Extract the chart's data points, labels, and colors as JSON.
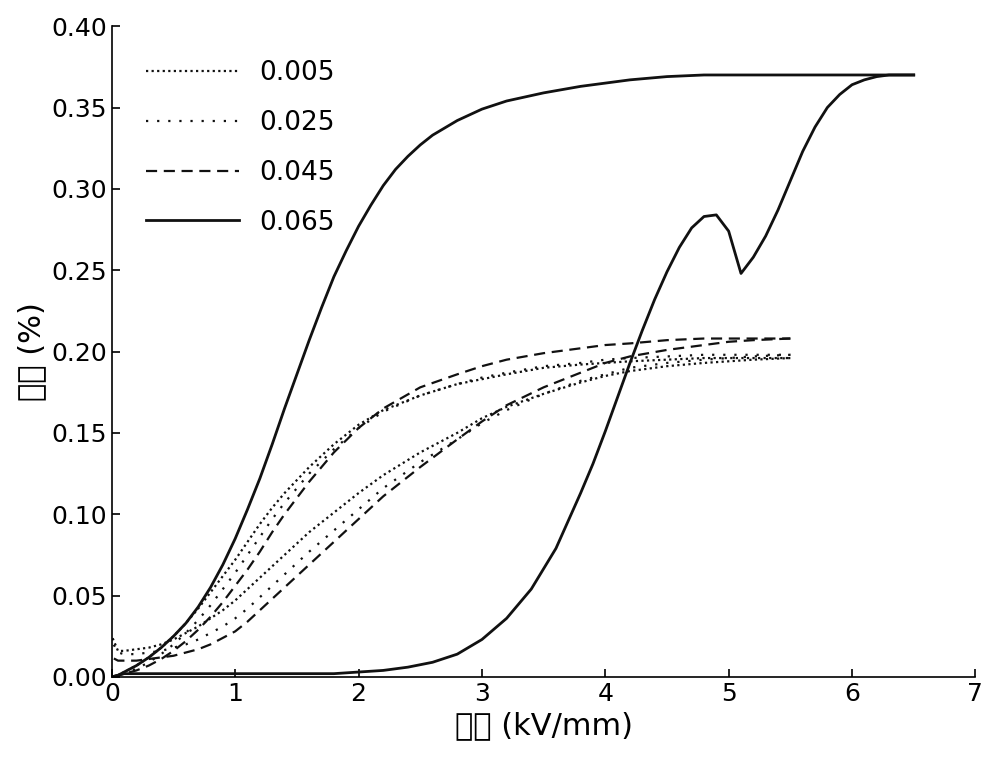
{
  "xlabel": "电场 (kV/mm)",
  "ylabel": "应变 (%)",
  "xlim": [
    0,
    7
  ],
  "ylim": [
    0,
    0.4
  ],
  "xticks": [
    0,
    1,
    2,
    3,
    4,
    5,
    6,
    7
  ],
  "yticks": [
    0.0,
    0.05,
    0.1,
    0.15,
    0.2,
    0.25,
    0.3,
    0.35,
    0.4
  ],
  "legend_labels": [
    "0.005",
    "0.025",
    "0.045",
    "0.065"
  ],
  "line_color": "#111111",
  "background_color": "#ffffff",
  "xlabel_fontsize": 22,
  "ylabel_fontsize": 22,
  "tick_fontsize": 18,
  "legend_fontsize": 19,
  "curves": {
    "s005_up_x": [
      0,
      0.05,
      0.1,
      0.2,
      0.3,
      0.4,
      0.5,
      0.6,
      0.7,
      0.8,
      0.9,
      1.0,
      1.1,
      1.2,
      1.3,
      1.4,
      1.5,
      1.6,
      1.8,
      2.0,
      2.2,
      2.5,
      2.8,
      3.0,
      3.2,
      3.5,
      3.8,
      4.0,
      4.2,
      4.5,
      4.8,
      5.0,
      5.2,
      5.5
    ],
    "s005_up_y": [
      0,
      0.001,
      0.003,
      0.007,
      0.012,
      0.018,
      0.025,
      0.033,
      0.042,
      0.052,
      0.062,
      0.072,
      0.083,
      0.094,
      0.104,
      0.113,
      0.121,
      0.129,
      0.143,
      0.155,
      0.164,
      0.173,
      0.18,
      0.183,
      0.186,
      0.19,
      0.192,
      0.193,
      0.194,
      0.195,
      0.196,
      0.196,
      0.196,
      0.196
    ],
    "s005_down_x": [
      5.5,
      5.2,
      5.0,
      4.8,
      4.5,
      4.2,
      4.0,
      3.8,
      3.5,
      3.2,
      3.0,
      2.8,
      2.5,
      2.2,
      2.0,
      1.8,
      1.6,
      1.5,
      1.4,
      1.3,
      1.2,
      1.1,
      1.0,
      0.9,
      0.8,
      0.7,
      0.6,
      0.5,
      0.4,
      0.3,
      0.2,
      0.1,
      0.05,
      0.0
    ],
    "s005_down_y": [
      0.196,
      0.195,
      0.194,
      0.193,
      0.191,
      0.188,
      0.185,
      0.181,
      0.174,
      0.166,
      0.159,
      0.15,
      0.138,
      0.124,
      0.113,
      0.101,
      0.089,
      0.082,
      0.075,
      0.068,
      0.061,
      0.054,
      0.047,
      0.041,
      0.036,
      0.031,
      0.027,
      0.023,
      0.02,
      0.018,
      0.017,
      0.016,
      0.016,
      0.025
    ],
    "s025_up_x": [
      0,
      0.05,
      0.1,
      0.2,
      0.3,
      0.4,
      0.5,
      0.6,
      0.7,
      0.8,
      0.9,
      1.0,
      1.1,
      1.2,
      1.3,
      1.4,
      1.5,
      1.6,
      1.8,
      2.0,
      2.2,
      2.5,
      2.8,
      3.0,
      3.2,
      3.5,
      3.8,
      4.0,
      4.2,
      4.5,
      4.8,
      5.0,
      5.2,
      5.5
    ],
    "s025_up_y": [
      0,
      0.001,
      0.002,
      0.005,
      0.009,
      0.014,
      0.02,
      0.027,
      0.035,
      0.044,
      0.054,
      0.064,
      0.075,
      0.086,
      0.097,
      0.107,
      0.116,
      0.125,
      0.14,
      0.153,
      0.163,
      0.173,
      0.18,
      0.184,
      0.187,
      0.191,
      0.193,
      0.195,
      0.196,
      0.197,
      0.198,
      0.198,
      0.198,
      0.198
    ],
    "s025_down_x": [
      5.5,
      5.2,
      5.0,
      4.8,
      4.5,
      4.2,
      4.0,
      3.8,
      3.5,
      3.2,
      3.0,
      2.8,
      2.5,
      2.2,
      2.0,
      1.8,
      1.6,
      1.5,
      1.4,
      1.3,
      1.2,
      1.1,
      1.0,
      0.9,
      0.8,
      0.7,
      0.6,
      0.5,
      0.4,
      0.3,
      0.2,
      0.1,
      0.05,
      0.0
    ],
    "s025_down_y": [
      0.198,
      0.197,
      0.196,
      0.195,
      0.193,
      0.19,
      0.186,
      0.182,
      0.174,
      0.164,
      0.156,
      0.146,
      0.132,
      0.116,
      0.103,
      0.09,
      0.077,
      0.07,
      0.063,
      0.056,
      0.049,
      0.042,
      0.036,
      0.031,
      0.027,
      0.023,
      0.02,
      0.018,
      0.016,
      0.015,
      0.014,
      0.014,
      0.015,
      0.022
    ],
    "s045_up_x": [
      0,
      0.05,
      0.1,
      0.2,
      0.3,
      0.4,
      0.5,
      0.6,
      0.7,
      0.8,
      0.9,
      1.0,
      1.1,
      1.2,
      1.3,
      1.4,
      1.5,
      1.6,
      1.8,
      2.0,
      2.2,
      2.5,
      2.8,
      3.0,
      3.2,
      3.5,
      3.8,
      4.0,
      4.2,
      4.5,
      4.8,
      5.0,
      5.2,
      5.5
    ],
    "s045_up_y": [
      0,
      0.001,
      0.002,
      0.004,
      0.007,
      0.011,
      0.016,
      0.022,
      0.029,
      0.037,
      0.046,
      0.056,
      0.066,
      0.077,
      0.089,
      0.1,
      0.11,
      0.12,
      0.138,
      0.153,
      0.165,
      0.178,
      0.186,
      0.191,
      0.195,
      0.199,
      0.202,
      0.204,
      0.205,
      0.207,
      0.208,
      0.208,
      0.208,
      0.208
    ],
    "s045_down_x": [
      5.5,
      5.2,
      5.0,
      4.8,
      4.5,
      4.2,
      4.0,
      3.8,
      3.5,
      3.2,
      3.0,
      2.8,
      2.5,
      2.2,
      2.0,
      1.8,
      1.6,
      1.5,
      1.4,
      1.3,
      1.2,
      1.1,
      1.0,
      0.9,
      0.8,
      0.7,
      0.6,
      0.5,
      0.4,
      0.3,
      0.2,
      0.1,
      0.05,
      0.0
    ],
    "s045_down_y": [
      0.208,
      0.207,
      0.206,
      0.204,
      0.201,
      0.197,
      0.193,
      0.187,
      0.178,
      0.167,
      0.157,
      0.146,
      0.129,
      0.111,
      0.097,
      0.083,
      0.069,
      0.062,
      0.055,
      0.048,
      0.041,
      0.034,
      0.028,
      0.024,
      0.02,
      0.017,
      0.015,
      0.013,
      0.012,
      0.011,
      0.01,
      0.01,
      0.01,
      0.012
    ],
    "s065_up_x": [
      0,
      0.05,
      0.1,
      0.2,
      0.3,
      0.4,
      0.5,
      0.6,
      0.7,
      0.8,
      0.9,
      1.0,
      1.1,
      1.2,
      1.3,
      1.4,
      1.5,
      1.6,
      1.7,
      1.8,
      1.9,
      2.0,
      2.1,
      2.2,
      2.3,
      2.4,
      2.5,
      2.6,
      2.8,
      3.0,
      3.2,
      3.5,
      3.8,
      4.0,
      4.2,
      4.5,
      4.8,
      5.0,
      5.2,
      5.4,
      5.5,
      5.6,
      5.7,
      5.8,
      5.9,
      6.0,
      6.1,
      6.2,
      6.3,
      6.4,
      6.5
    ],
    "s065_up_y": [
      0,
      0.001,
      0.003,
      0.007,
      0.012,
      0.018,
      0.025,
      0.033,
      0.043,
      0.055,
      0.069,
      0.085,
      0.103,
      0.122,
      0.143,
      0.165,
      0.186,
      0.207,
      0.227,
      0.246,
      0.262,
      0.277,
      0.29,
      0.302,
      0.312,
      0.32,
      0.327,
      0.333,
      0.342,
      0.349,
      0.354,
      0.359,
      0.363,
      0.365,
      0.367,
      0.369,
      0.37,
      0.37,
      0.37,
      0.37,
      0.37,
      0.37,
      0.37,
      0.37,
      0.37,
      0.37,
      0.37,
      0.37,
      0.37,
      0.37,
      0.37
    ],
    "s065_down_x": [
      6.5,
      6.4,
      6.3,
      6.2,
      6.1,
      6.0,
      5.9,
      5.8,
      5.7,
      5.6,
      5.5,
      5.4,
      5.3,
      5.2,
      5.1,
      5.0,
      4.9,
      4.8,
      4.7,
      4.6,
      4.5,
      4.4,
      4.3,
      4.2,
      4.1,
      4.0,
      3.9,
      3.8,
      3.6,
      3.4,
      3.2,
      3.0,
      2.8,
      2.6,
      2.4,
      2.2,
      2.0,
      1.8,
      1.6,
      1.4,
      1.2,
      1.0,
      0.8,
      0.6,
      0.4,
      0.2,
      0.1,
      0.0
    ],
    "s065_down_y": [
      0.37,
      0.37,
      0.37,
      0.369,
      0.367,
      0.364,
      0.358,
      0.35,
      0.338,
      0.323,
      0.305,
      0.287,
      0.271,
      0.258,
      0.248,
      0.274,
      0.284,
      0.283,
      0.276,
      0.264,
      0.249,
      0.232,
      0.213,
      0.193,
      0.172,
      0.151,
      0.131,
      0.113,
      0.079,
      0.054,
      0.036,
      0.023,
      0.014,
      0.009,
      0.006,
      0.004,
      0.003,
      0.002,
      0.002,
      0.002,
      0.002,
      0.002,
      0.002,
      0.002,
      0.002,
      0.002,
      0.002,
      0.0
    ]
  }
}
